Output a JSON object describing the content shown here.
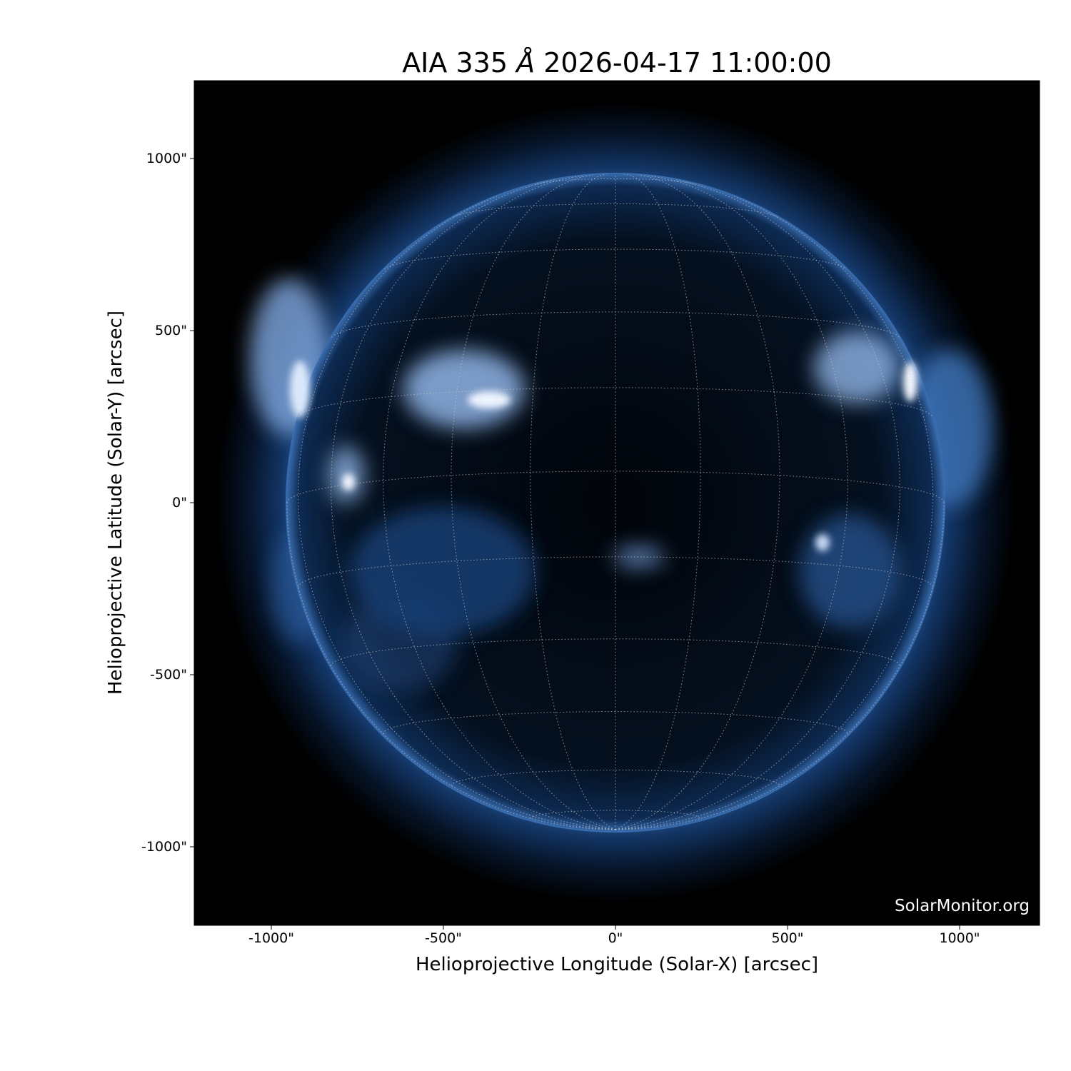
{
  "title": {
    "instrument": "AIA",
    "wavelength": "335",
    "unit": "Å",
    "datetime": "2026-04-17 11:00:00"
  },
  "axes": {
    "xlabel": "Helioprojective Longitude (Solar-X) [arcsec]",
    "ylabel": "Helioprojective Latitude (Solar-Y) [arcsec]",
    "xticks": [
      "-1000\"",
      "-500\"",
      "0\"",
      "500\"",
      "1000\""
    ],
    "yticks": [
      "1000\"",
      "500\"",
      "0\"",
      "-500\"",
      "-1000\""
    ],
    "xtick_values": [
      -1000,
      -500,
      0,
      500,
      1000
    ],
    "ytick_values": [
      1000,
      500,
      0,
      -500,
      -1000
    ],
    "range_arcsec": [
      -1230,
      1230
    ]
  },
  "image": {
    "colormap": "sdoaia335",
    "background": "#000000",
    "disk_color": "#0b1e3a",
    "bright_color": "#e8f0ff",
    "grid": "heliographic 15° dotted"
  },
  "watermark": "SolarMonitor.org"
}
